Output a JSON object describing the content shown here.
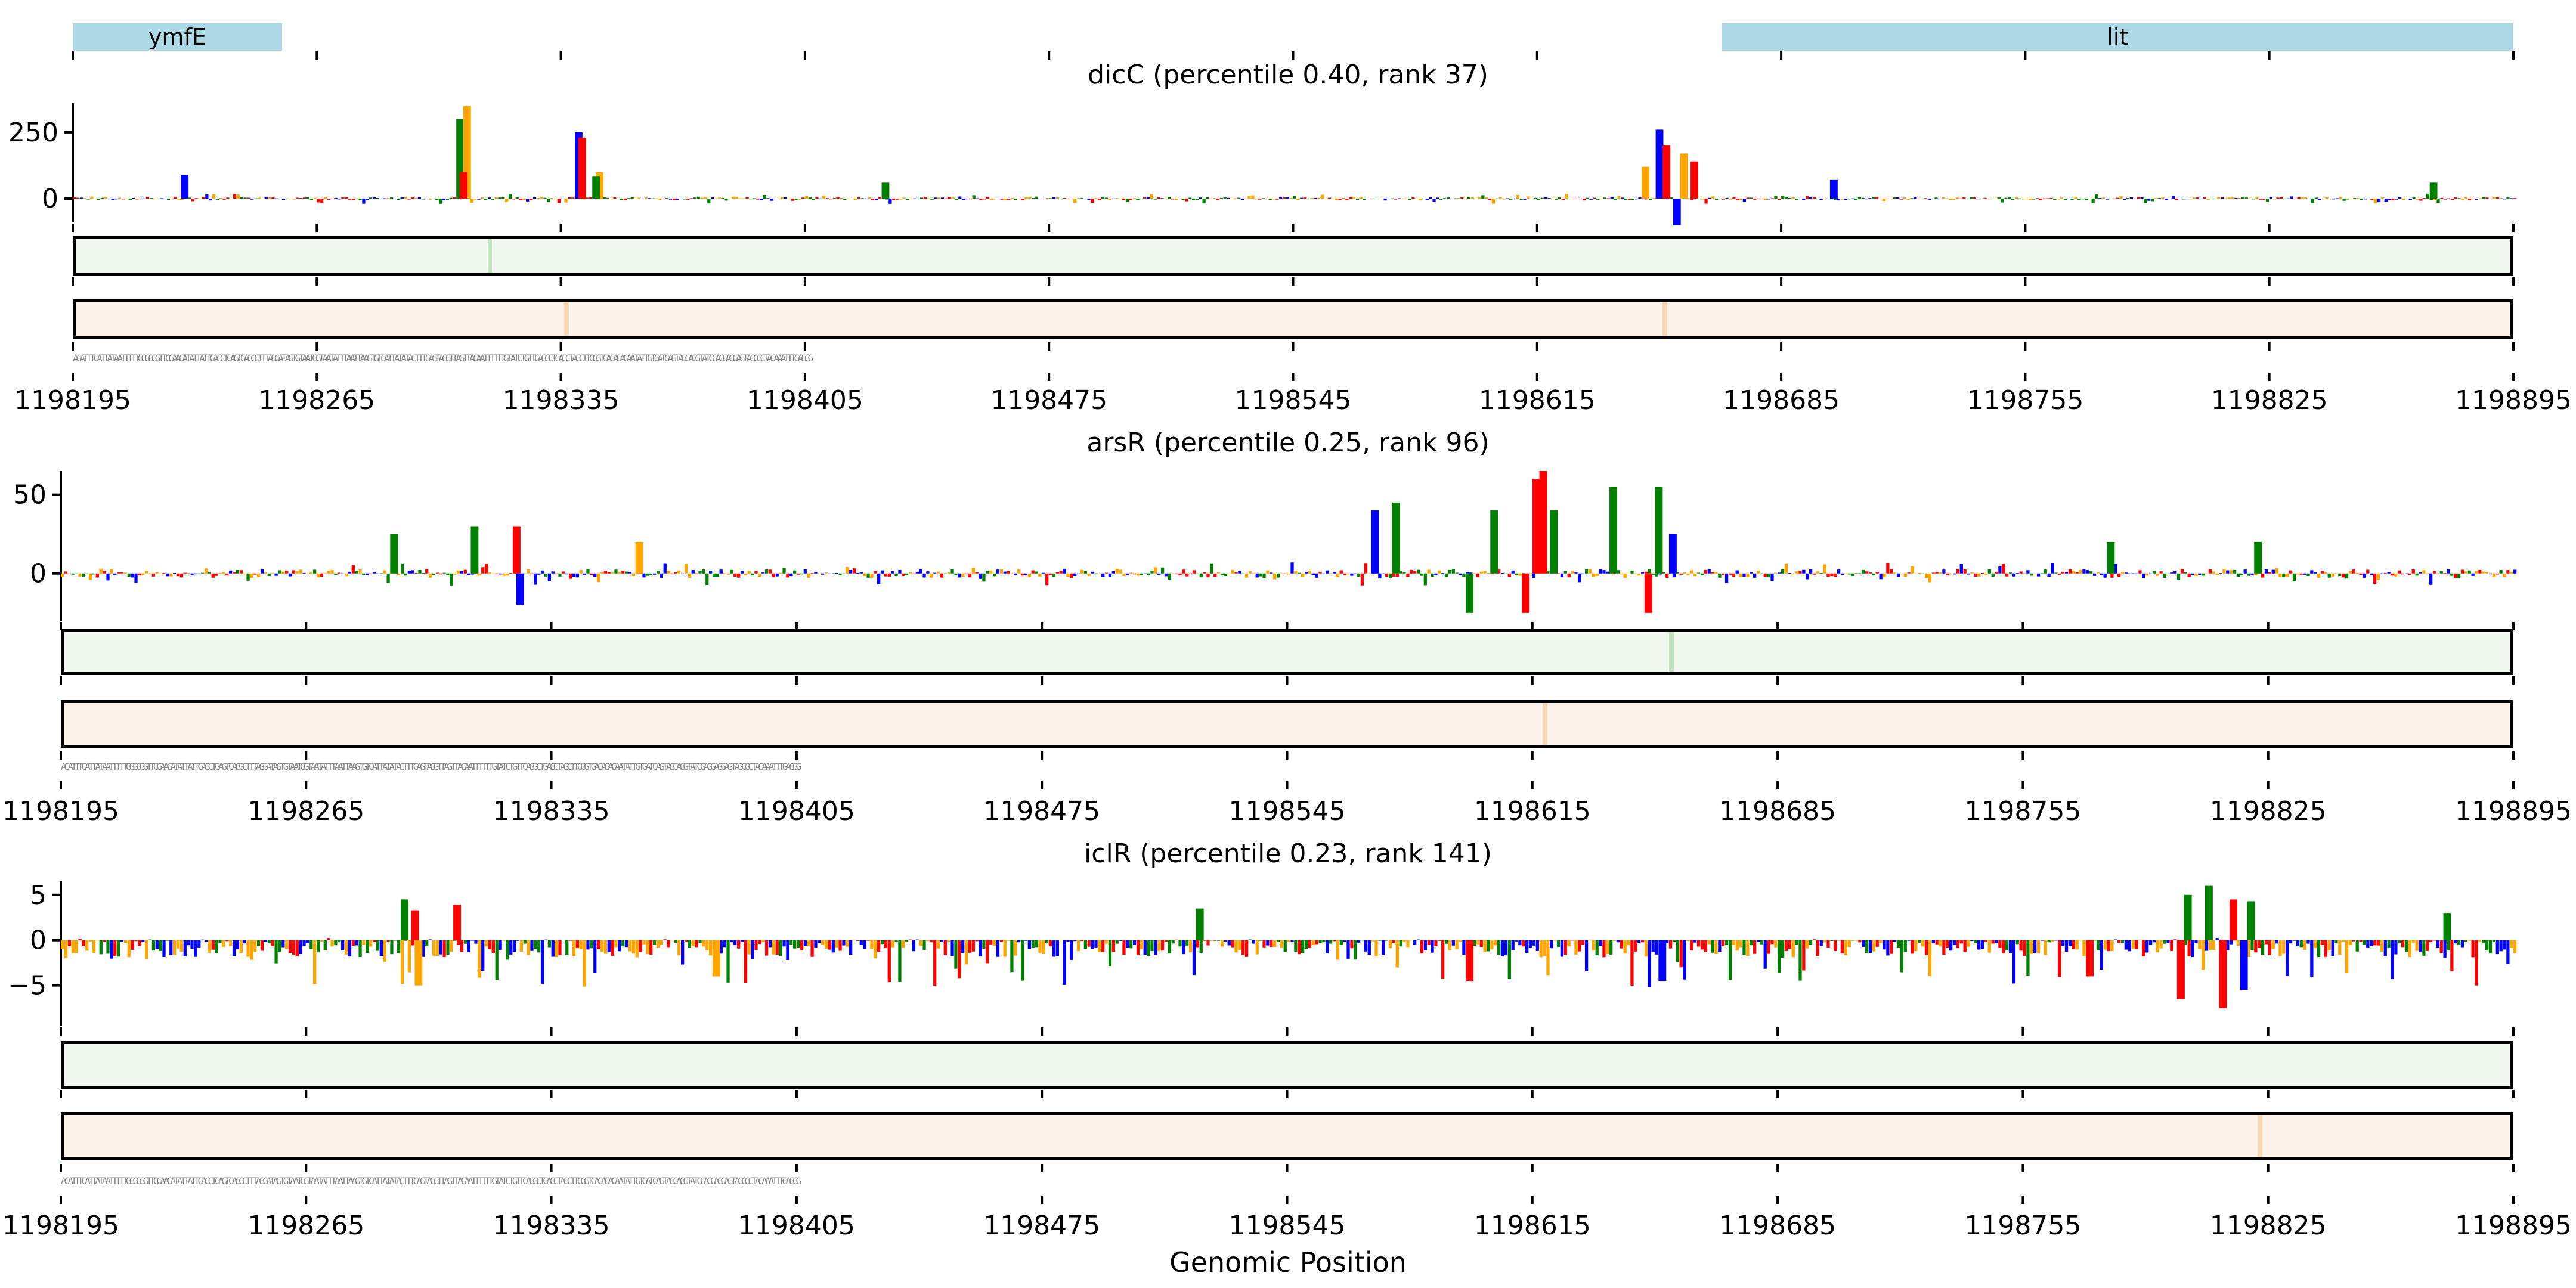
{
  "genes": [
    {
      "name": "ymfE",
      "start": 1198195,
      "end": 1198255
    },
    {
      "name": "lit",
      "start": 1198668,
      "end": 1198895
    }
  ],
  "xaxis": {
    "label": "Genomic Position",
    "range": [
      1198195,
      1198895
    ],
    "ticks": [
      "1198195",
      "1198265",
      "1198335",
      "1198405",
      "1198475",
      "1198545",
      "1198615",
      "1198685",
      "1198755",
      "1198825",
      "1198895"
    ]
  },
  "sequence_visible_prefix": "ACATTTCATTATAATTTTTGGGGGGTTCGAACATATTATTCACCTGAGTCACGCTTTAGGATAGTGTAATGGTAATATTTAATTAAGTGTCATTATATACTTTCAGTAGGTTAGTTACAATTTTTTGTATCTGTTCAGGCTGACCTAGCTTCGGTGACAGACAATATTGTGATCAGTAGCACGTATCGAGGAGGAGTAGCGCTACAAATTTGACGG",
  "colors": {
    "A": "#ff0000",
    "C": "#0000ff",
    "G": "#ffa500",
    "T": "#008000",
    "gene": "#add8e6",
    "green_track": "#f0f8ef",
    "orange_track": "#fdf3ea"
  },
  "chart_data": [
    {
      "type": "sequence-logo",
      "title": "dicC (percentile 0.40, rank 37)",
      "ylim": [
        -90,
        360
      ],
      "yticks": [
        {
          "v": 0,
          "label": "0"
        },
        {
          "v": 250,
          "label": "250"
        }
      ],
      "peaks": [
        {
          "pos": 1198227,
          "base": "C",
          "value": 90
        },
        {
          "pos": 1198306,
          "base": "T",
          "value": 300
        },
        {
          "pos": 1198308,
          "base": "G",
          "value": 350
        },
        {
          "pos": 1198307,
          "base": "A",
          "value": 100
        },
        {
          "pos": 1198340,
          "base": "C",
          "value": 250
        },
        {
          "pos": 1198341,
          "base": "A",
          "value": 230
        },
        {
          "pos": 1198346,
          "base": "G",
          "value": 100
        },
        {
          "pos": 1198345,
          "base": "T",
          "value": 85
        },
        {
          "pos": 1198428,
          "base": "T",
          "value": 60
        },
        {
          "pos": 1198646,
          "base": "G",
          "value": 120
        },
        {
          "pos": 1198650,
          "base": "C",
          "value": 260
        },
        {
          "pos": 1198652,
          "base": "A",
          "value": 200
        },
        {
          "pos": 1198655,
          "base": "C",
          "value": -100
        },
        {
          "pos": 1198657,
          "base": "G",
          "value": 170
        },
        {
          "pos": 1198660,
          "base": "A",
          "value": 140
        },
        {
          "pos": 1198700,
          "base": "C",
          "value": 70
        },
        {
          "pos": 1198872,
          "base": "T",
          "value": 60
        }
      ],
      "noise_amp": 18,
      "green_highlights": [
        1198314
      ],
      "orange_highlights": [
        1198336,
        1198651
      ]
    },
    {
      "type": "sequence-logo",
      "title": "arsR (percentile 0.25, rank 96)",
      "ylim": [
        -30,
        65
      ],
      "yticks": [
        {
          "v": 0,
          "label": "0"
        },
        {
          "v": 50,
          "label": "50"
        }
      ],
      "peaks": [
        {
          "pos": 1198290,
          "base": "T",
          "value": 25
        },
        {
          "pos": 1198313,
          "base": "T",
          "value": 30
        },
        {
          "pos": 1198326,
          "base": "C",
          "value": -20
        },
        {
          "pos": 1198325,
          "base": "A",
          "value": 30
        },
        {
          "pos": 1198360,
          "base": "G",
          "value": 20
        },
        {
          "pos": 1198570,
          "base": "C",
          "value": 40
        },
        {
          "pos": 1198576,
          "base": "T",
          "value": 45
        },
        {
          "pos": 1198597,
          "base": "T",
          "value": -25
        },
        {
          "pos": 1198604,
          "base": "T",
          "value": 40
        },
        {
          "pos": 1198613,
          "base": "A",
          "value": -25
        },
        {
          "pos": 1198616,
          "base": "A",
          "value": 60
        },
        {
          "pos": 1198618,
          "base": "A",
          "value": 65
        },
        {
          "pos": 1198621,
          "base": "T",
          "value": 40
        },
        {
          "pos": 1198638,
          "base": "T",
          "value": 55
        },
        {
          "pos": 1198648,
          "base": "A",
          "value": -25
        },
        {
          "pos": 1198651,
          "base": "T",
          "value": 55
        },
        {
          "pos": 1198655,
          "base": "C",
          "value": 25
        },
        {
          "pos": 1198780,
          "base": "T",
          "value": 20
        },
        {
          "pos": 1198822,
          "base": "T",
          "value": 20
        }
      ],
      "noise_amp": 7,
      "green_highlights": [
        1198654
      ],
      "orange_highlights": [
        1198618
      ]
    },
    {
      "type": "sequence-logo",
      "title": "iclR (percentile 0.23, rank 141)",
      "ylim": [
        -9.5,
        6.5
      ],
      "yticks": [
        {
          "v": -5,
          "label": "−5"
        },
        {
          "v": 0,
          "label": "0"
        },
        {
          "v": 5,
          "label": "5"
        }
      ],
      "peaks": [
        {
          "pos": 1198293,
          "base": "T",
          "value": 4.5
        },
        {
          "pos": 1198296,
          "base": "A",
          "value": 3.3
        },
        {
          "pos": 1198297,
          "base": "G",
          "value": -5
        },
        {
          "pos": 1198308,
          "base": "A",
          "value": 3.9
        },
        {
          "pos": 1198382,
          "base": "G",
          "value": -4
        },
        {
          "pos": 1198520,
          "base": "T",
          "value": 3.5
        },
        {
          "pos": 1198597,
          "base": "A",
          "value": -4.5
        },
        {
          "pos": 1198652,
          "base": "C",
          "value": -4.5
        },
        {
          "pos": 1198774,
          "base": "A",
          "value": -4
        },
        {
          "pos": 1198800,
          "base": "A",
          "value": -6.5
        },
        {
          "pos": 1198802,
          "base": "T",
          "value": 5
        },
        {
          "pos": 1198808,
          "base": "T",
          "value": 6
        },
        {
          "pos": 1198812,
          "base": "A",
          "value": -7.5
        },
        {
          "pos": 1198815,
          "base": "A",
          "value": 4.5
        },
        {
          "pos": 1198818,
          "base": "C",
          "value": -5.5
        },
        {
          "pos": 1198820,
          "base": "T",
          "value": 4.3
        },
        {
          "pos": 1198876,
          "base": "T",
          "value": 3
        }
      ],
      "noise_amp": 2.5,
      "noise_bias": -0.45,
      "green_highlights": [],
      "orange_highlights": [
        1198822
      ]
    }
  ]
}
